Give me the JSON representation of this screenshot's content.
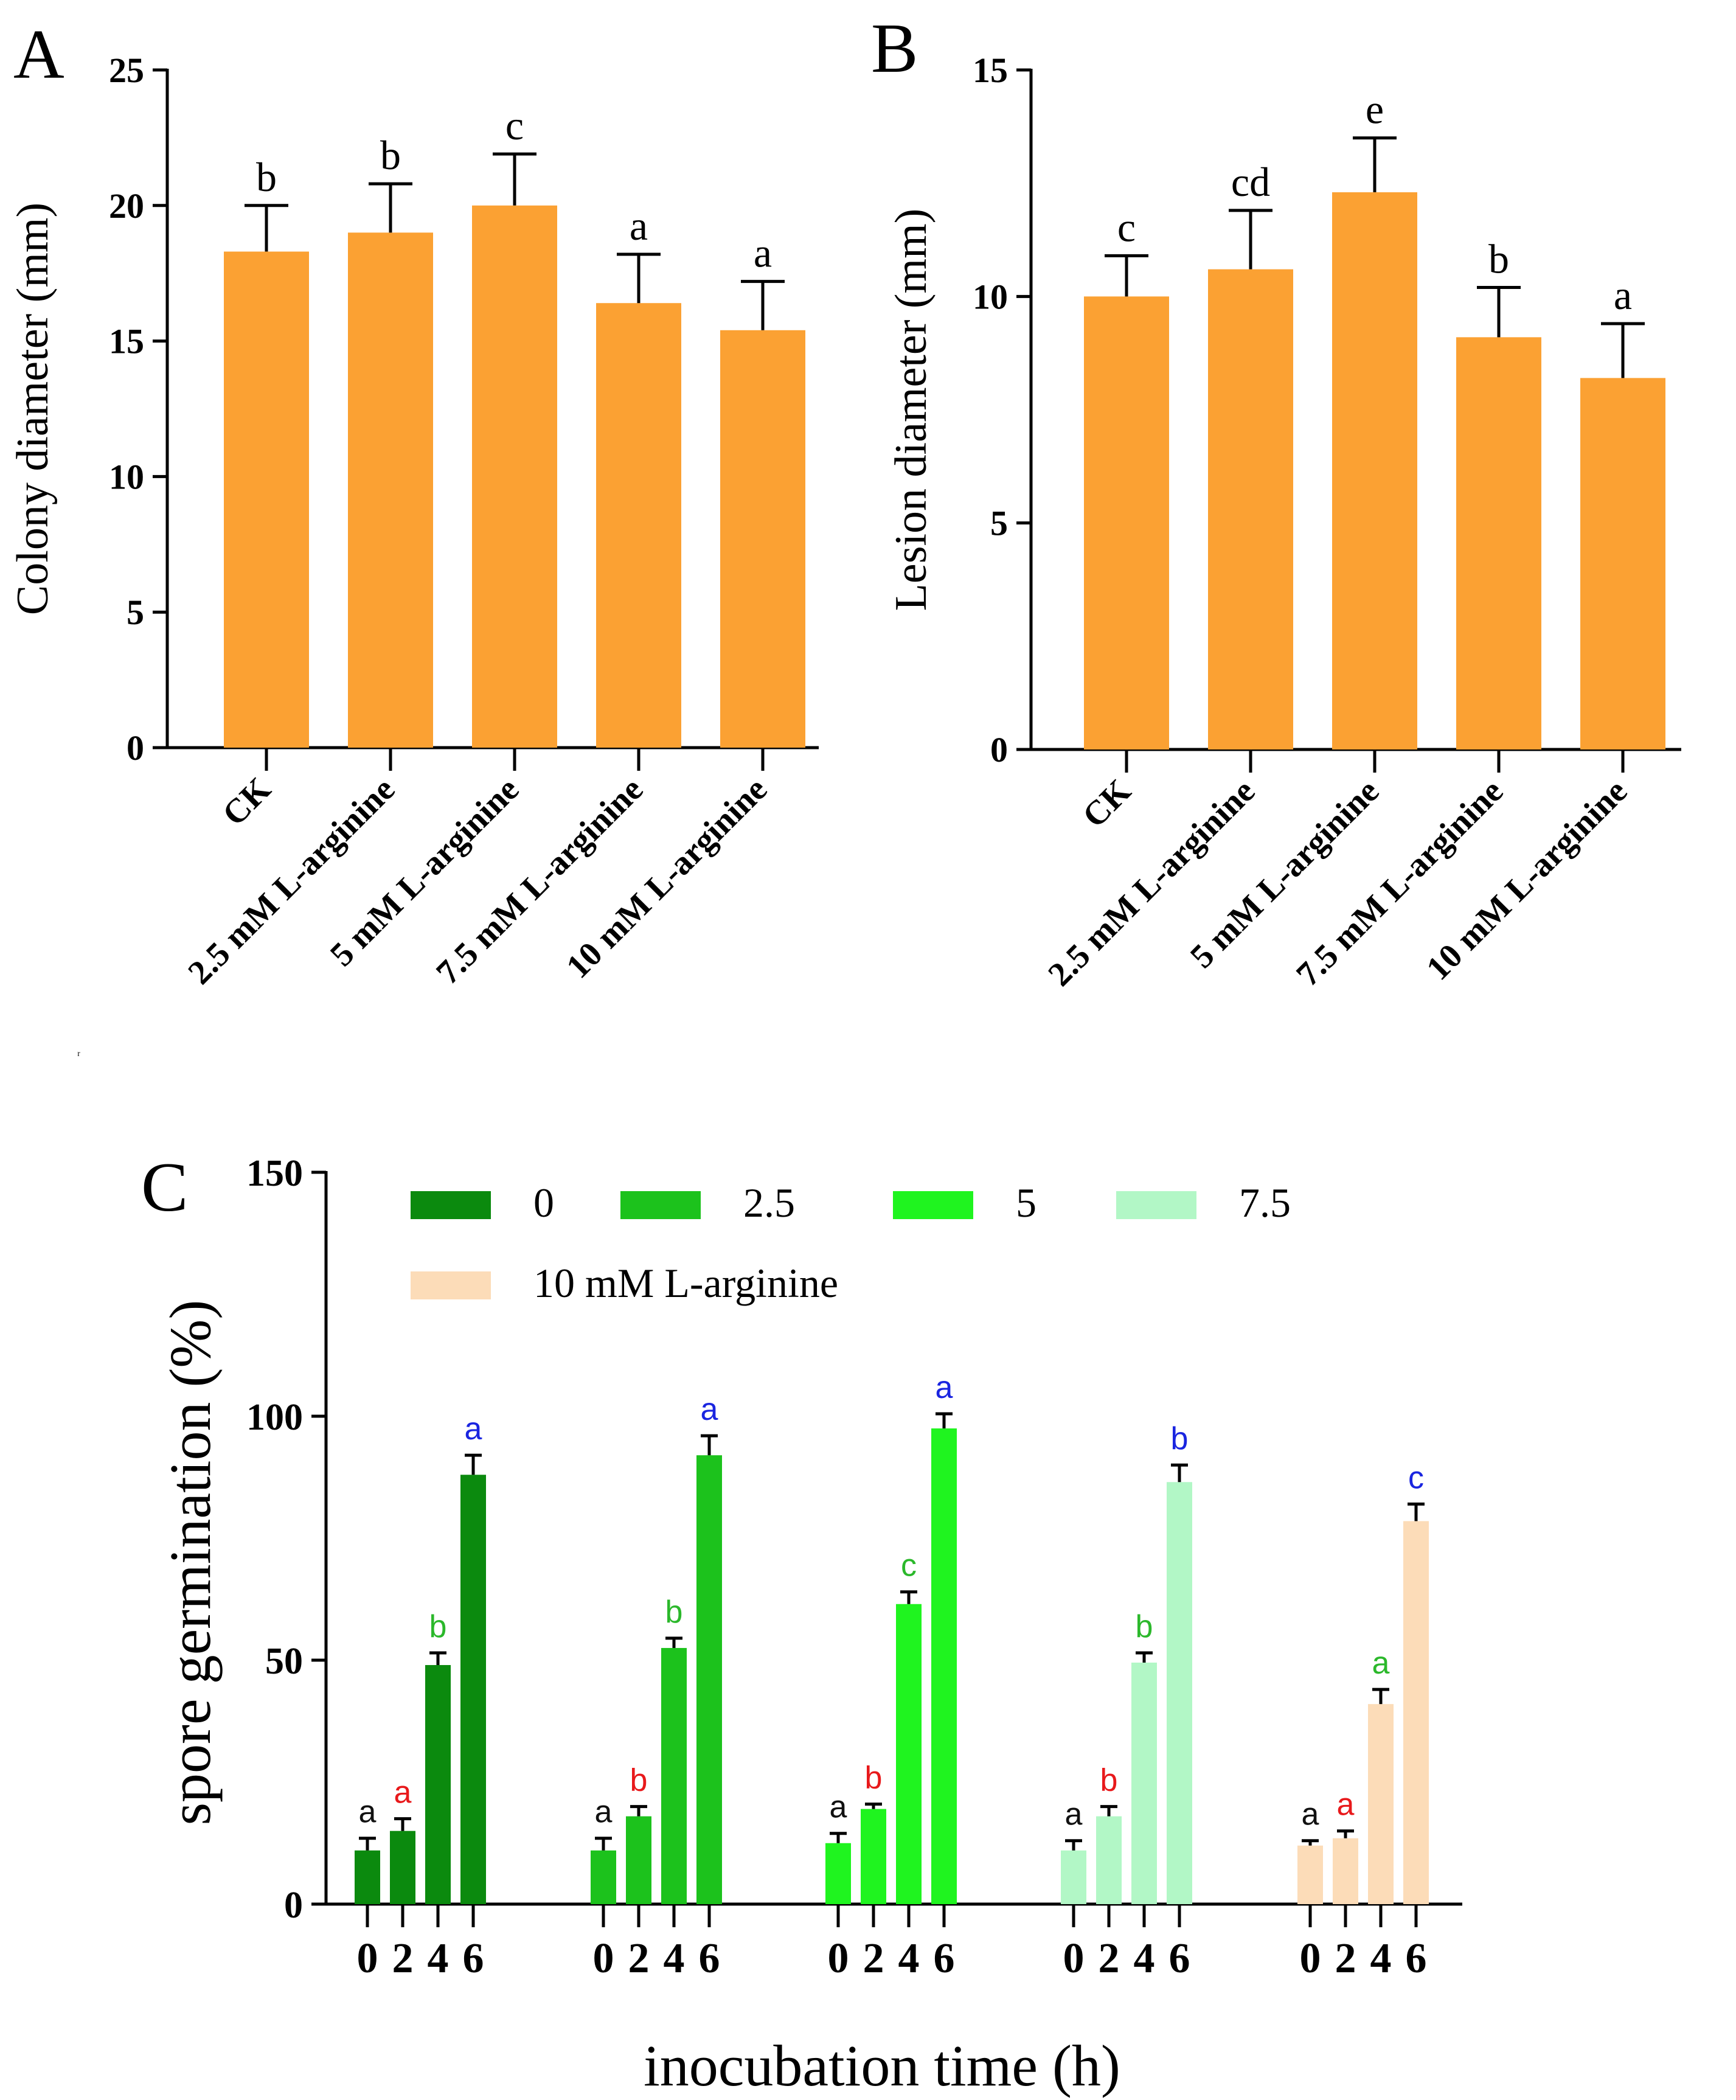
{
  "chart_data": [
    {
      "panel": "A",
      "type": "bar",
      "ylabel": "Colony diameter (mm)",
      "ylim": [
        0,
        25
      ],
      "yticks": [
        0,
        5,
        10,
        15,
        20,
        25
      ],
      "categories": [
        "CK",
        "2.5 mM L-arginine",
        "5 mM L-arginine",
        "7.5 mM L-arginine",
        "10 mM L-arginine"
      ],
      "values": [
        18.3,
        19.0,
        20.0,
        16.4,
        15.4
      ],
      "errors": [
        1.7,
        1.8,
        1.9,
        1.8,
        1.8
      ],
      "letters": [
        "b",
        "b",
        "c",
        "a",
        "a"
      ],
      "bar_color": "#FBA133"
    },
    {
      "panel": "B",
      "type": "bar",
      "ylabel": "Lesion diameter (mm)",
      "ylim": [
        0,
        15
      ],
      "yticks": [
        0,
        5,
        10,
        15
      ],
      "categories": [
        "CK",
        "2.5 mM L-arginine",
        "5 mM L-arginine",
        "7.5 mM L-arginine",
        "10 mM L-arginine"
      ],
      "values": [
        10.0,
        10.6,
        12.3,
        9.1,
        8.2
      ],
      "errors": [
        0.9,
        1.3,
        1.2,
        1.1,
        1.2
      ],
      "letters": [
        "c",
        "cd",
        "e",
        "b",
        "a"
      ],
      "bar_color": "#FBA133"
    },
    {
      "panel": "C",
      "type": "bar",
      "ylabel": "spore germination (%)",
      "xlabel": "inocubation time (h)",
      "ylim": [
        0,
        150
      ],
      "yticks": [
        0,
        50,
        100,
        150
      ],
      "x_ticks": [
        "0",
        "2",
        "4",
        "6"
      ],
      "legend_labels": [
        "0",
        "2.5",
        "5",
        "7.5",
        "10 mM L-arginine"
      ],
      "series": [
        {
          "name": "0",
          "color": "#0B8A0E",
          "values": [
            11,
            15,
            49,
            88
          ],
          "errors": [
            2.5,
            2.5,
            2.5,
            4
          ],
          "letters": [
            "a",
            "a",
            "b",
            "a"
          ]
        },
        {
          "name": "2.5",
          "color": "#1CC21C",
          "values": [
            11,
            18,
            52.5,
            92
          ],
          "errors": [
            2.5,
            2,
            2,
            4
          ],
          "letters": [
            "a",
            "b",
            "b",
            "a"
          ]
        },
        {
          "name": "5",
          "color": "#1FF41F",
          "values": [
            12.5,
            19.5,
            61.5,
            97.5
          ],
          "errors": [
            2,
            1,
            2.5,
            3
          ],
          "letters": [
            "a",
            "b",
            "c",
            "a"
          ]
        },
        {
          "name": "7.5",
          "color": "#B2F7C6",
          "values": [
            11,
            18,
            49.5,
            86.5
          ],
          "errors": [
            2,
            2,
            2,
            3.5
          ],
          "letters": [
            "a",
            "b",
            "b",
            "b"
          ]
        },
        {
          "name": "10 mM L-arginine",
          "color": "#FCDCB8",
          "values": [
            12,
            13.5,
            41,
            78.5
          ],
          "errors": [
            1,
            1.5,
            3,
            3.5
          ],
          "letters": [
            "a",
            "a",
            "a",
            "c"
          ]
        }
      ],
      "letter_colors": [
        "#111111",
        "#E8191B",
        "#2BB82B",
        "#1A25E0"
      ]
    }
  ],
  "labels": {
    "panel_a": "A",
    "panel_b": "B",
    "panel_c": "C"
  }
}
